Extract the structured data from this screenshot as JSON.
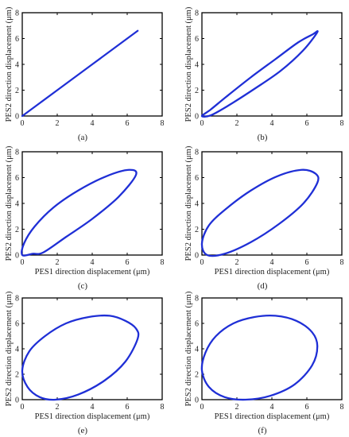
{
  "chart_data": [
    {
      "type": "line",
      "caption": "(a)",
      "xlabel": "",
      "ylabel": "PES2 direction displacement (μm)",
      "xlim": [
        0,
        8
      ],
      "ylim": [
        0,
        8
      ],
      "xticks": [
        0,
        2,
        4,
        6,
        8
      ],
      "yticks": [
        0,
        2,
        4,
        6,
        8
      ],
      "series": [
        {
          "x": [
            0,
            1,
            2,
            3,
            4,
            5,
            6,
            6.6
          ],
          "y": [
            0,
            1,
            2,
            3,
            4,
            5,
            6,
            6.6
          ]
        }
      ]
    },
    {
      "type": "line",
      "caption": "(b)",
      "xlabel": "",
      "ylabel": "PES2 direction displacement (μm)",
      "xlim": [
        0,
        8
      ],
      "ylim": [
        0,
        8
      ],
      "xticks": [
        0,
        2,
        4,
        6,
        8
      ],
      "yticks": [
        0,
        2,
        4,
        6,
        8
      ],
      "series": [
        {
          "x": [
            0,
            0.5,
            1.5,
            3,
            4.5,
            5.8,
            6.6,
            6.3,
            5.5,
            4.2,
            2.8,
            1.4,
            0.5,
            0
          ],
          "y": [
            0,
            0.05,
            0.8,
            2.1,
            3.5,
            5.1,
            6.5,
            6.3,
            5.7,
            4.4,
            3.0,
            1.5,
            0.5,
            0
          ]
        }
      ]
    },
    {
      "type": "line",
      "caption": "(c)",
      "xlabel": "PES1 direction displacement (μm)",
      "ylabel": "PES2 direction displacement (μm)",
      "xlim": [
        0,
        8
      ],
      "ylim": [
        0,
        8
      ],
      "xticks": [
        0,
        2,
        4,
        6,
        8
      ],
      "yticks": [
        0,
        2,
        4,
        6,
        8
      ],
      "series": [
        {
          "x": [
            0,
            0.6,
            1.2,
            2.5,
            4,
            5.5,
            6.5,
            6.1,
            4.8,
            3.2,
            1.8,
            0.7,
            0.1,
            0
          ],
          "y": [
            0,
            0.1,
            0.2,
            1.4,
            2.8,
            4.5,
            6.2,
            6.6,
            6.1,
            5.0,
            3.7,
            2.2,
            0.9,
            0
          ]
        }
      ]
    },
    {
      "type": "line",
      "caption": "(d)",
      "xlabel": "PES1 direction displacement (μm)",
      "ylabel": "PES2 direction displacement (μm)",
      "xlim": [
        0,
        8
      ],
      "ylim": [
        0,
        8
      ],
      "xticks": [
        0,
        2,
        4,
        6,
        8
      ],
      "yticks": [
        0,
        2,
        4,
        6,
        8
      ],
      "series": [
        {
          "x": [
            0.3,
            1.3,
            2.8,
            4.4,
            5.8,
            6.6,
            6.5,
            5.7,
            4.3,
            2.8,
            1.4,
            0.4,
            0.0,
            0.3
          ],
          "y": [
            0.0,
            0.1,
            1.0,
            2.4,
            4.0,
            5.6,
            6.3,
            6.6,
            6.1,
            5.0,
            3.6,
            2.3,
            0.9,
            0.0
          ]
        }
      ]
    },
    {
      "type": "line",
      "caption": "(e)",
      "xlabel": "PES1 direction displacement (μm)",
      "ylabel": "PES2 direction displacement (μm)",
      "xlim": [
        0,
        8
      ],
      "ylim": [
        0,
        8
      ],
      "xticks": [
        0,
        2,
        4,
        6,
        8
      ],
      "yticks": [
        0,
        2,
        4,
        6,
        8
      ],
      "series": [
        {
          "x": [
            1.9,
            3.2,
            4.7,
            5.9,
            6.6,
            6.5,
            5.9,
            5.0,
            3.8,
            2.5,
            1.3,
            0.4,
            0.0,
            0.3,
            1.0,
            1.9
          ],
          "y": [
            0.0,
            0.4,
            1.5,
            3.0,
            4.8,
            5.6,
            6.2,
            6.6,
            6.5,
            6.0,
            5.0,
            3.8,
            2.3,
            1.0,
            0.2,
            0.0
          ]
        }
      ]
    },
    {
      "type": "line",
      "caption": "(f)",
      "xlabel": "PES1 direction displacement (μm)",
      "ylabel": "PES2 direction displacement (μm)",
      "xlim": [
        0,
        8
      ],
      "ylim": [
        0,
        8
      ],
      "xticks": [
        0,
        2,
        4,
        6,
        8
      ],
      "yticks": [
        0,
        2,
        4,
        6,
        8
      ],
      "series": [
        {
          "x": [
            2.5,
            3.9,
            5.3,
            6.3,
            6.6,
            6.3,
            5.4,
            4.2,
            3.0,
            1.8,
            0.8,
            0.2,
            0.0,
            0.4,
            1.3,
            2.5
          ],
          "y": [
            0.0,
            0.3,
            1.2,
            2.7,
            4.2,
            5.3,
            6.2,
            6.6,
            6.5,
            6.0,
            5.0,
            3.7,
            2.3,
            1.0,
            0.2,
            0.0
          ]
        }
      ]
    }
  ],
  "style": {
    "line_color": "#1f2fd6"
  }
}
